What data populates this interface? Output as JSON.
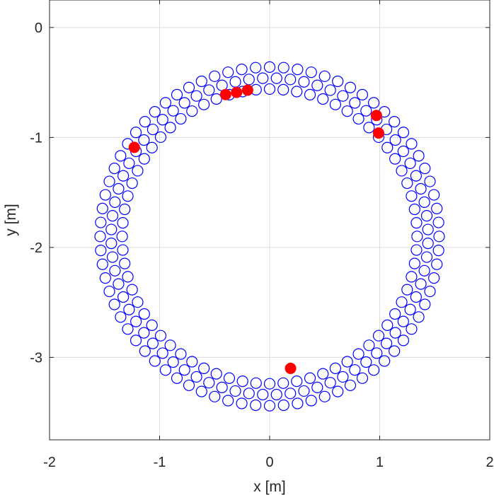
{
  "chart_data": {
    "type": "scatter",
    "title": "",
    "xlabel": "x [m]",
    "ylabel": "y [m]",
    "xlim": [
      -2,
      2
    ],
    "ylim": [
      -3.75,
      0.25
    ],
    "xticks": [
      -2,
      -1,
      0,
      1,
      2
    ],
    "yticks": [
      -3,
      -2,
      -1,
      0
    ],
    "grid": true,
    "background": "#ffffff",
    "ring": {
      "center": [
        0,
        -1.9
      ],
      "radii": [
        1.34,
        1.44,
        1.54
      ],
      "points_per_ring": [
        68,
        72,
        76
      ],
      "marker": "open-circle",
      "color": "#0000ff"
    },
    "series": [
      {
        "marker": "filled-circle",
        "color": "#ff0000",
        "x": [
          -1.23,
          -0.4,
          -0.3,
          -0.2,
          0.97,
          0.99,
          0.19
        ],
        "y": [
          -1.09,
          -0.61,
          -0.59,
          -0.57,
          -0.8,
          -0.96,
          -3.1
        ]
      }
    ]
  }
}
